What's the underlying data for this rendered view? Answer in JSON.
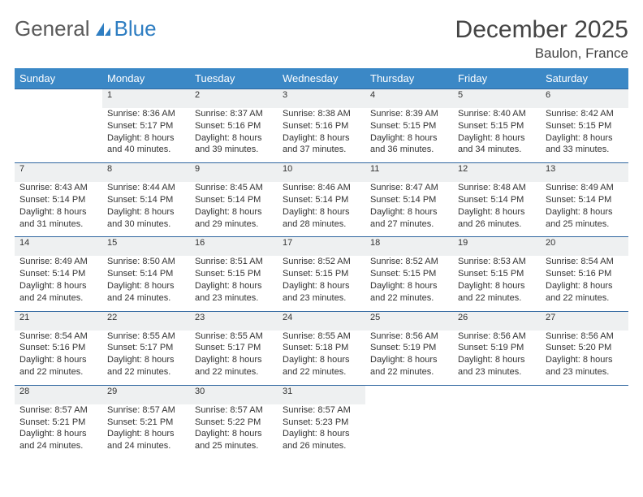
{
  "logo": {
    "part1": "General",
    "part2": "Blue"
  },
  "title": "December 2025",
  "location": "Baulon, France",
  "dow": [
    "Sunday",
    "Monday",
    "Tuesday",
    "Wednesday",
    "Thursday",
    "Friday",
    "Saturday"
  ],
  "colors": {
    "header_bg": "#3b88c6",
    "header_text": "#ffffff",
    "daynum_bg": "#eef0f1",
    "rule": "#2f66a0",
    "text": "#333333",
    "logo_blue": "#2f7ec2",
    "logo_gray": "#5a5a5a"
  },
  "first_weekday_offset": 1,
  "days": [
    {
      "n": 1,
      "sr": "8:36 AM",
      "ss": "5:17 PM",
      "dl": "8 hours and 40 minutes."
    },
    {
      "n": 2,
      "sr": "8:37 AM",
      "ss": "5:16 PM",
      "dl": "8 hours and 39 minutes."
    },
    {
      "n": 3,
      "sr": "8:38 AM",
      "ss": "5:16 PM",
      "dl": "8 hours and 37 minutes."
    },
    {
      "n": 4,
      "sr": "8:39 AM",
      "ss": "5:15 PM",
      "dl": "8 hours and 36 minutes."
    },
    {
      "n": 5,
      "sr": "8:40 AM",
      "ss": "5:15 PM",
      "dl": "8 hours and 34 minutes."
    },
    {
      "n": 6,
      "sr": "8:42 AM",
      "ss": "5:15 PM",
      "dl": "8 hours and 33 minutes."
    },
    {
      "n": 7,
      "sr": "8:43 AM",
      "ss": "5:14 PM",
      "dl": "8 hours and 31 minutes."
    },
    {
      "n": 8,
      "sr": "8:44 AM",
      "ss": "5:14 PM",
      "dl": "8 hours and 30 minutes."
    },
    {
      "n": 9,
      "sr": "8:45 AM",
      "ss": "5:14 PM",
      "dl": "8 hours and 29 minutes."
    },
    {
      "n": 10,
      "sr": "8:46 AM",
      "ss": "5:14 PM",
      "dl": "8 hours and 28 minutes."
    },
    {
      "n": 11,
      "sr": "8:47 AM",
      "ss": "5:14 PM",
      "dl": "8 hours and 27 minutes."
    },
    {
      "n": 12,
      "sr": "8:48 AM",
      "ss": "5:14 PM",
      "dl": "8 hours and 26 minutes."
    },
    {
      "n": 13,
      "sr": "8:49 AM",
      "ss": "5:14 PM",
      "dl": "8 hours and 25 minutes."
    },
    {
      "n": 14,
      "sr": "8:49 AM",
      "ss": "5:14 PM",
      "dl": "8 hours and 24 minutes."
    },
    {
      "n": 15,
      "sr": "8:50 AM",
      "ss": "5:14 PM",
      "dl": "8 hours and 24 minutes."
    },
    {
      "n": 16,
      "sr": "8:51 AM",
      "ss": "5:15 PM",
      "dl": "8 hours and 23 minutes."
    },
    {
      "n": 17,
      "sr": "8:52 AM",
      "ss": "5:15 PM",
      "dl": "8 hours and 23 minutes."
    },
    {
      "n": 18,
      "sr": "8:52 AM",
      "ss": "5:15 PM",
      "dl": "8 hours and 22 minutes."
    },
    {
      "n": 19,
      "sr": "8:53 AM",
      "ss": "5:15 PM",
      "dl": "8 hours and 22 minutes."
    },
    {
      "n": 20,
      "sr": "8:54 AM",
      "ss": "5:16 PM",
      "dl": "8 hours and 22 minutes."
    },
    {
      "n": 21,
      "sr": "8:54 AM",
      "ss": "5:16 PM",
      "dl": "8 hours and 22 minutes."
    },
    {
      "n": 22,
      "sr": "8:55 AM",
      "ss": "5:17 PM",
      "dl": "8 hours and 22 minutes."
    },
    {
      "n": 23,
      "sr": "8:55 AM",
      "ss": "5:17 PM",
      "dl": "8 hours and 22 minutes."
    },
    {
      "n": 24,
      "sr": "8:55 AM",
      "ss": "5:18 PM",
      "dl": "8 hours and 22 minutes."
    },
    {
      "n": 25,
      "sr": "8:56 AM",
      "ss": "5:19 PM",
      "dl": "8 hours and 22 minutes."
    },
    {
      "n": 26,
      "sr": "8:56 AM",
      "ss": "5:19 PM",
      "dl": "8 hours and 23 minutes."
    },
    {
      "n": 27,
      "sr": "8:56 AM",
      "ss": "5:20 PM",
      "dl": "8 hours and 23 minutes."
    },
    {
      "n": 28,
      "sr": "8:57 AM",
      "ss": "5:21 PM",
      "dl": "8 hours and 24 minutes."
    },
    {
      "n": 29,
      "sr": "8:57 AM",
      "ss": "5:21 PM",
      "dl": "8 hours and 24 minutes."
    },
    {
      "n": 30,
      "sr": "8:57 AM",
      "ss": "5:22 PM",
      "dl": "8 hours and 25 minutes."
    },
    {
      "n": 31,
      "sr": "8:57 AM",
      "ss": "5:23 PM",
      "dl": "8 hours and 26 minutes."
    }
  ]
}
